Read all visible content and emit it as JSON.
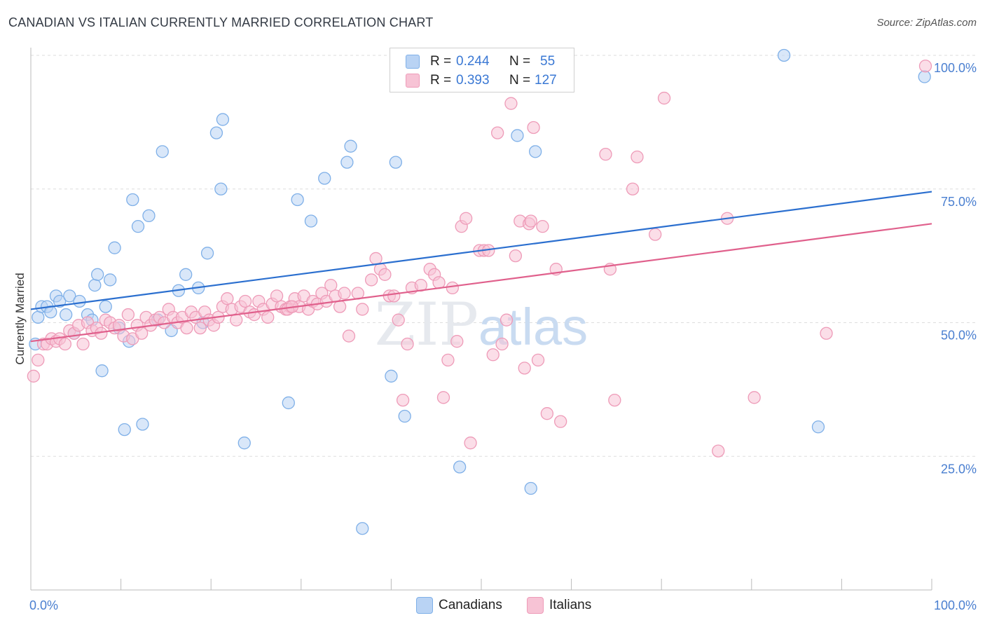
{
  "chart_data": {
    "type": "scatter",
    "title": "CANADIAN VS ITALIAN CURRENTLY MARRIED CORRELATION CHART",
    "source": "Source: ZipAtlas.com",
    "xlabel": "",
    "ylabel": "Currently Married",
    "xlim": [
      0,
      100
    ],
    "ylim": [
      0,
      105
    ],
    "x_tick_labels": [
      "0.0%",
      "100.0%"
    ],
    "y_ticks": [
      25,
      50,
      75,
      100
    ],
    "y_tick_labels": [
      "25.0%",
      "50.0%",
      "75.0%",
      "100.0%"
    ],
    "grid": "horizontal dashed",
    "watermark": "ZIPatlas",
    "legend": [
      {
        "name": "Canadians",
        "r_label": "R =",
        "r": "0.244",
        "n_label": "N =",
        "n": "55"
      },
      {
        "name": "Italians",
        "r_label": "R =",
        "r": "0.393",
        "n_label": "N =",
        "n": "127"
      }
    ],
    "series": [
      {
        "name": "Canadians",
        "color": "#7fb0e8",
        "fill": "#b9d3f4",
        "line_color": "#2b6fcf",
        "trend": {
          "x": [
            0,
            100
          ],
          "y": [
            52.5,
            74.5
          ]
        },
        "points": [
          [
            0.5,
            46
          ],
          [
            0.8,
            51
          ],
          [
            1.2,
            53
          ],
          [
            1.8,
            53
          ],
          [
            2.2,
            52
          ],
          [
            2.8,
            55
          ],
          [
            3.2,
            54
          ],
          [
            3.9,
            51.5
          ],
          [
            4.3,
            55
          ],
          [
            4.8,
            48
          ],
          [
            5.4,
            54
          ],
          [
            6.3,
            51.5
          ],
          [
            6.8,
            50.5
          ],
          [
            7.1,
            57
          ],
          [
            7.4,
            59
          ],
          [
            7.9,
            41
          ],
          [
            8.3,
            53
          ],
          [
            8.8,
            58
          ],
          [
            9.3,
            64
          ],
          [
            9.8,
            49
          ],
          [
            10.4,
            30
          ],
          [
            10.9,
            46.5
          ],
          [
            11.3,
            73
          ],
          [
            11.9,
            68
          ],
          [
            12.4,
            31
          ],
          [
            13.1,
            70
          ],
          [
            14.1,
            50.5
          ],
          [
            14.6,
            82
          ],
          [
            15.6,
            48.5
          ],
          [
            16.4,
            56
          ],
          [
            17.2,
            59
          ],
          [
            18.6,
            56.5
          ],
          [
            19.1,
            50
          ],
          [
            19.6,
            63
          ],
          [
            20.6,
            85.5
          ],
          [
            21.1,
            75
          ],
          [
            21.3,
            88
          ],
          [
            23.7,
            27.5
          ],
          [
            28.6,
            35
          ],
          [
            29.6,
            73
          ],
          [
            31.1,
            69
          ],
          [
            32.6,
            77
          ],
          [
            35.1,
            80
          ],
          [
            35.5,
            83
          ],
          [
            36.8,
            11.5
          ],
          [
            40,
            40
          ],
          [
            40.5,
            80
          ],
          [
            41.5,
            32.5
          ],
          [
            47.6,
            23
          ],
          [
            54,
            85
          ],
          [
            55.5,
            19
          ],
          [
            56,
            82
          ],
          [
            83.6,
            100
          ],
          [
            87.4,
            30.5
          ],
          [
            99.2,
            96
          ]
        ]
      },
      {
        "name": "Italians",
        "color": "#ee9bb8",
        "fill": "#f7c3d5",
        "line_color": "#e0608c",
        "trend": {
          "x": [
            0,
            100
          ],
          "y": [
            46.5,
            68.5
          ]
        },
        "points": [
          [
            0.3,
            40
          ],
          [
            0.8,
            43
          ],
          [
            1.4,
            46
          ],
          [
            1.8,
            46
          ],
          [
            2.3,
            47
          ],
          [
            2.8,
            46.5
          ],
          [
            3.2,
            47
          ],
          [
            3.8,
            46
          ],
          [
            4.3,
            48.5
          ],
          [
            4.8,
            48
          ],
          [
            5.3,
            49.5
          ],
          [
            5.8,
            46
          ],
          [
            6.3,
            50
          ],
          [
            6.8,
            48.5
          ],
          [
            7.3,
            49
          ],
          [
            7.8,
            48
          ],
          [
            8.3,
            50.5
          ],
          [
            8.8,
            50
          ],
          [
            9.3,
            49
          ],
          [
            9.8,
            49.5
          ],
          [
            10.3,
            47.5
          ],
          [
            10.8,
            51.5
          ],
          [
            11.3,
            47
          ],
          [
            11.8,
            49.5
          ],
          [
            12.3,
            48
          ],
          [
            12.8,
            51
          ],
          [
            13.3,
            49.5
          ],
          [
            13.8,
            50.5
          ],
          [
            14.3,
            51
          ],
          [
            14.8,
            50
          ],
          [
            15.3,
            52.5
          ],
          [
            15.8,
            51
          ],
          [
            16.3,
            50
          ],
          [
            16.8,
            51
          ],
          [
            17.3,
            49
          ],
          [
            17.8,
            52
          ],
          [
            18.3,
            51
          ],
          [
            18.8,
            49
          ],
          [
            19.3,
            52
          ],
          [
            19.8,
            50.5
          ],
          [
            20.3,
            49.5
          ],
          [
            20.8,
            51
          ],
          [
            21.3,
            53
          ],
          [
            21.8,
            54.5
          ],
          [
            22.3,
            52.5
          ],
          [
            22.8,
            50.5
          ],
          [
            23.3,
            53
          ],
          [
            23.8,
            54
          ],
          [
            24.3,
            52
          ],
          [
            24.8,
            51.5
          ],
          [
            25.3,
            54
          ],
          [
            25.8,
            52.5
          ],
          [
            26.3,
            51
          ],
          [
            26.8,
            53.5
          ],
          [
            27.3,
            55
          ],
          [
            27.8,
            53
          ],
          [
            28.3,
            52.5
          ],
          [
            28.8,
            53
          ],
          [
            29.3,
            54.5
          ],
          [
            29.8,
            53
          ],
          [
            30.3,
            55
          ],
          [
            30.8,
            52.5
          ],
          [
            31.3,
            54
          ],
          [
            31.8,
            53.5
          ],
          [
            32.3,
            55.5
          ],
          [
            32.8,
            54
          ],
          [
            33.3,
            57
          ],
          [
            33.8,
            55
          ],
          [
            34.3,
            53
          ],
          [
            34.8,
            55.5
          ],
          [
            35.3,
            47.5
          ],
          [
            36.3,
            55.5
          ],
          [
            36.8,
            52.5
          ],
          [
            37.8,
            58
          ],
          [
            38.3,
            62
          ],
          [
            38.8,
            60
          ],
          [
            39.3,
            59
          ],
          [
            39.8,
            55
          ],
          [
            40.3,
            55
          ],
          [
            40.8,
            50.5
          ],
          [
            41.3,
            35.5
          ],
          [
            41.8,
            46
          ],
          [
            42.3,
            56.5
          ],
          [
            43.3,
            57
          ],
          [
            44.3,
            60
          ],
          [
            44.8,
            59
          ],
          [
            45.3,
            57.5
          ],
          [
            45.8,
            36
          ],
          [
            46.3,
            43
          ],
          [
            46.8,
            56.5
          ],
          [
            47.3,
            46.5
          ],
          [
            47.8,
            68
          ],
          [
            48.3,
            69.5
          ],
          [
            48.8,
            27.5
          ],
          [
            49.8,
            63.5
          ],
          [
            50.3,
            63.5
          ],
          [
            50.8,
            63.5
          ],
          [
            51.3,
            44
          ],
          [
            51.8,
            85.5
          ],
          [
            52.3,
            46
          ],
          [
            52.8,
            50.5
          ],
          [
            53.3,
            91
          ],
          [
            53.8,
            62.5
          ],
          [
            54.3,
            69
          ],
          [
            54.8,
            41.5
          ],
          [
            55.3,
            68.5
          ],
          [
            55.8,
            86.5
          ],
          [
            56.3,
            43
          ],
          [
            56.8,
            68
          ],
          [
            57.3,
            33
          ],
          [
            58.3,
            60
          ],
          [
            58.8,
            31.5
          ],
          [
            63.8,
            81.5
          ],
          [
            64.3,
            60
          ],
          [
            64.8,
            35.5
          ],
          [
            66.8,
            75
          ],
          [
            67.3,
            81
          ],
          [
            69.3,
            66.5
          ],
          [
            70.3,
            92
          ],
          [
            76.3,
            26
          ],
          [
            77.3,
            69.5
          ],
          [
            80.3,
            36
          ],
          [
            88.3,
            48
          ],
          [
            99.3,
            98
          ],
          [
            55.5,
            69
          ],
          [
            28.5,
            52.5
          ],
          [
            29,
            53
          ]
        ]
      }
    ]
  }
}
